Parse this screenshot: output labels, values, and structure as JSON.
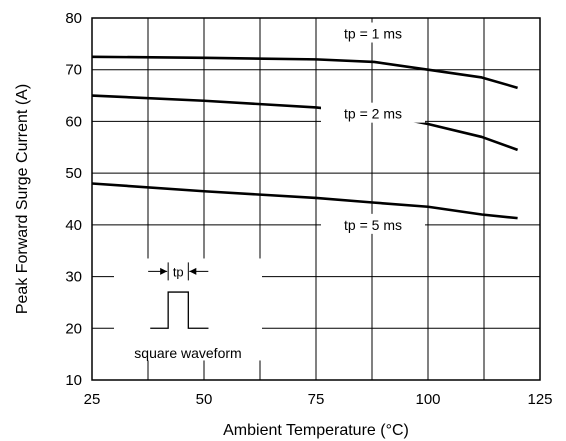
{
  "chart_data": {
    "type": "line",
    "xlabel": "Ambient Temperature (°C)",
    "ylabel": "Peak Forward Surge Current (A)",
    "xlim": [
      25,
      125
    ],
    "ylim": [
      10,
      80
    ],
    "x_ticks": [
      25,
      50,
      75,
      100,
      125
    ],
    "y_ticks": [
      10,
      20,
      30,
      40,
      50,
      60,
      70,
      80
    ],
    "grid": true,
    "series": [
      {
        "name": "tp = 1 ms",
        "x": [
          25,
          50,
          75,
          88,
          100,
          112,
          120
        ],
        "values": [
          72.5,
          72.3,
          72.0,
          71.5,
          70.0,
          68.5,
          66.5
        ]
      },
      {
        "name": "tp = 2 ms",
        "x": [
          25,
          50,
          75,
          88,
          100,
          112,
          120
        ],
        "values": [
          65.0,
          64.0,
          62.7,
          61.5,
          59.5,
          57.0,
          54.5
        ]
      },
      {
        "name": "tp = 5 ms",
        "x": [
          25,
          50,
          75,
          88,
          100,
          112,
          120
        ],
        "values": [
          48.0,
          46.5,
          45.2,
          44.3,
          43.5,
          42.0,
          41.3
        ]
      }
    ],
    "inset": {
      "pulse_label": "tp",
      "caption": "square waveform"
    }
  }
}
